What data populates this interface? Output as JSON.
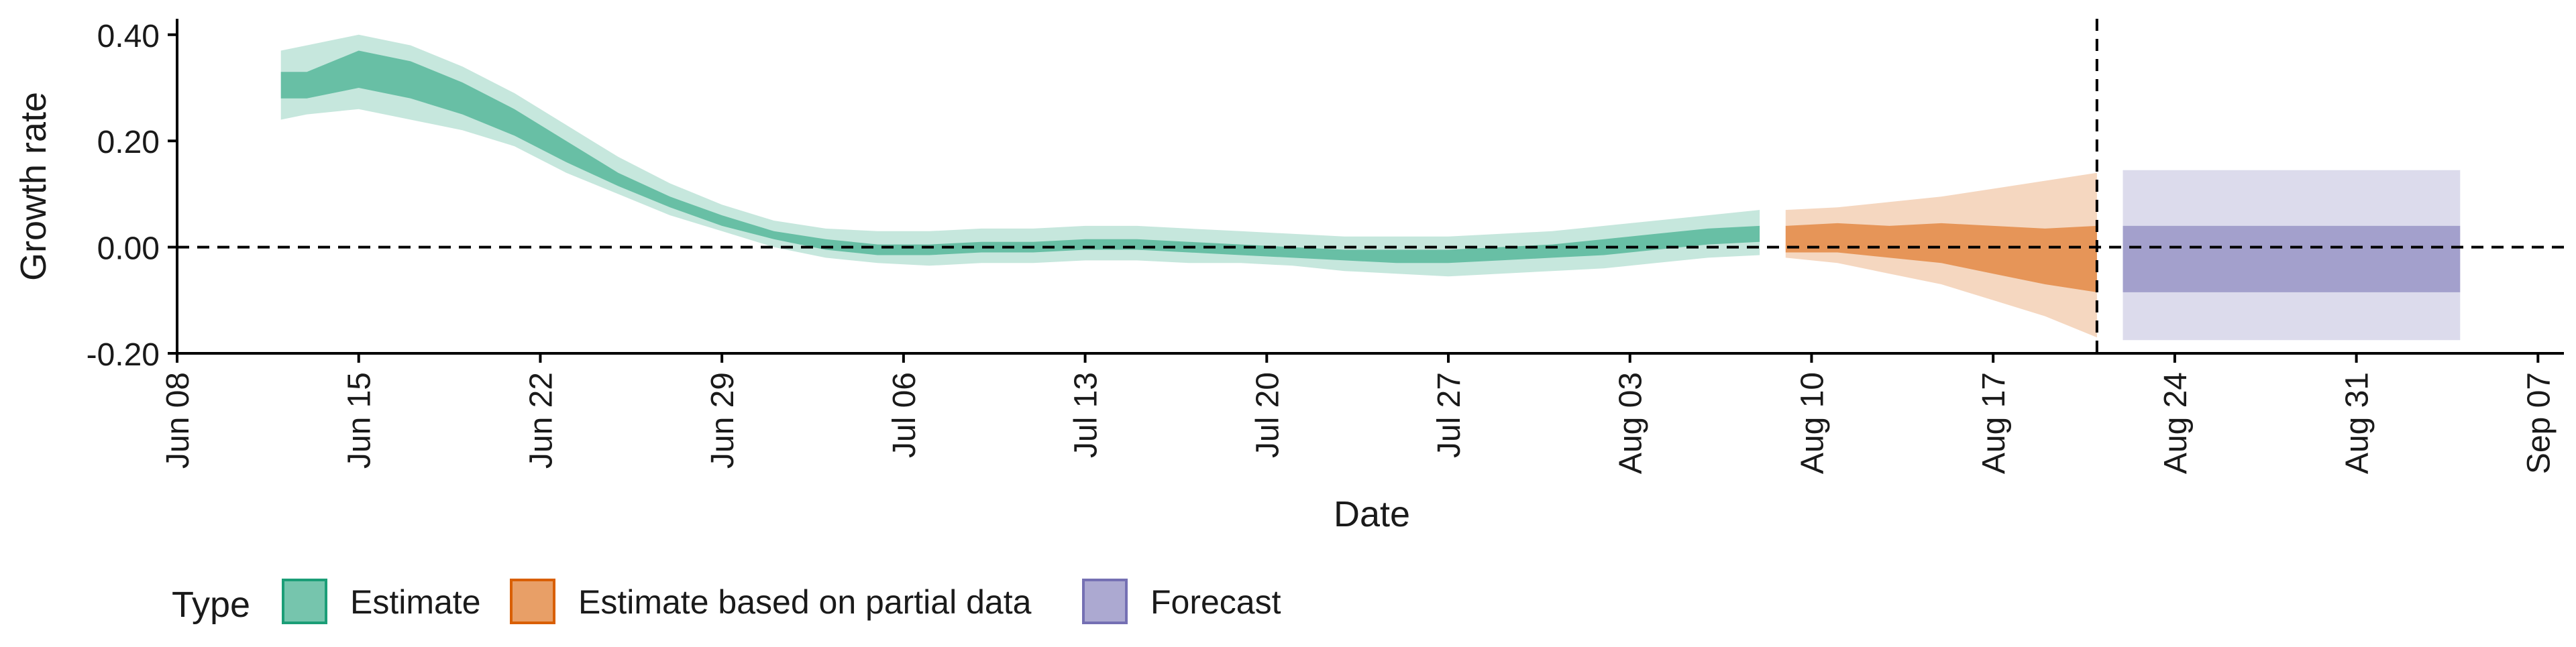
{
  "chart_data": {
    "type": "area",
    "xlabel": "Date",
    "ylabel": "Growth rate",
    "ylim": [
      -0.2,
      0.43
    ],
    "xlim": [
      "2020-06-08",
      "2020-09-08"
    ],
    "x_ticks": [
      "2020-06-08",
      "2020-06-15",
      "2020-06-22",
      "2020-06-29",
      "2020-07-06",
      "2020-07-13",
      "2020-07-20",
      "2020-07-27",
      "2020-08-03",
      "2020-08-10",
      "2020-08-17",
      "2020-08-24",
      "2020-08-31",
      "2020-09-07"
    ],
    "x_tick_labels": [
      "Jun 08",
      "Jun 15",
      "Jun 22",
      "Jun 29",
      "Jul 06",
      "Jul 13",
      "Jul 20",
      "Jul 27",
      "Aug 03",
      "Aug 10",
      "Aug 17",
      "Aug 24",
      "Aug 31",
      "Sep 07"
    ],
    "y_ticks": [
      -0.2,
      0.0,
      0.2,
      0.4
    ],
    "y_tick_labels": [
      "-0.20",
      "0.00",
      "0.20",
      "0.40"
    ],
    "grid": false,
    "reference_lines": {
      "horizontal_y": 0.0,
      "vertical_date": "2020-08-21"
    },
    "legend": {
      "title": "Type",
      "placement": "bottom-left",
      "entries": [
        {
          "label": "Estimate",
          "color": "#1b9e77"
        },
        {
          "label": "Estimate based on partial data",
          "color": "#d95f02"
        },
        {
          "label": "Forecast",
          "color": "#7570b3"
        }
      ]
    },
    "series": [
      {
        "name": "Estimate",
        "color": "#1b9e77",
        "x": [
          "2020-06-12",
          "2020-06-13",
          "2020-06-15",
          "2020-06-17",
          "2020-06-19",
          "2020-06-21",
          "2020-06-23",
          "2020-06-25",
          "2020-06-27",
          "2020-06-29",
          "2020-07-01",
          "2020-07-03",
          "2020-07-05",
          "2020-07-07",
          "2020-07-09",
          "2020-07-11",
          "2020-07-13",
          "2020-07-15",
          "2020-07-17",
          "2020-07-19",
          "2020-07-21",
          "2020-07-23",
          "2020-07-25",
          "2020-07-27",
          "2020-07-29",
          "2020-07-31",
          "2020-08-02",
          "2020-08-04",
          "2020-08-06",
          "2020-08-08"
        ],
        "outer_lower": [
          0.24,
          0.25,
          0.26,
          0.24,
          0.22,
          0.19,
          0.14,
          0.1,
          0.06,
          0.03,
          0.0,
          -0.02,
          -0.03,
          -0.035,
          -0.03,
          -0.03,
          -0.025,
          -0.025,
          -0.03,
          -0.03,
          -0.035,
          -0.045,
          -0.05,
          -0.055,
          -0.05,
          -0.045,
          -0.04,
          -0.03,
          -0.02,
          -0.015
        ],
        "inner_lower": [
          0.28,
          0.28,
          0.3,
          0.28,
          0.25,
          0.21,
          0.16,
          0.115,
          0.075,
          0.04,
          0.015,
          -0.005,
          -0.015,
          -0.015,
          -0.01,
          -0.01,
          -0.005,
          -0.005,
          -0.01,
          -0.015,
          -0.02,
          -0.025,
          -0.03,
          -0.03,
          -0.025,
          -0.02,
          -0.015,
          -0.005,
          0.005,
          0.01
        ],
        "inner_upper": [
          0.33,
          0.33,
          0.37,
          0.35,
          0.31,
          0.26,
          0.2,
          0.14,
          0.095,
          0.06,
          0.03,
          0.015,
          0.005,
          0.005,
          0.01,
          0.01,
          0.015,
          0.015,
          0.01,
          0.005,
          0.0,
          -0.005,
          -0.005,
          -0.005,
          0.0,
          0.005,
          0.015,
          0.025,
          0.035,
          0.04
        ],
        "outer_upper": [
          0.37,
          0.38,
          0.4,
          0.38,
          0.34,
          0.29,
          0.23,
          0.17,
          0.12,
          0.08,
          0.05,
          0.035,
          0.03,
          0.03,
          0.035,
          0.035,
          0.04,
          0.04,
          0.035,
          0.03,
          0.025,
          0.02,
          0.02,
          0.02,
          0.025,
          0.03,
          0.04,
          0.05,
          0.06,
          0.07
        ]
      },
      {
        "name": "Estimate based on partial data",
        "color": "#d95f02",
        "x": [
          "2020-08-09",
          "2020-08-11",
          "2020-08-13",
          "2020-08-15",
          "2020-08-17",
          "2020-08-19",
          "2020-08-21"
        ],
        "outer_lower": [
          -0.02,
          -0.03,
          -0.05,
          -0.07,
          -0.1,
          -0.13,
          -0.17
        ],
        "inner_lower": [
          -0.01,
          -0.01,
          -0.02,
          -0.03,
          -0.05,
          -0.07,
          -0.085
        ],
        "inner_upper": [
          0.04,
          0.045,
          0.04,
          0.045,
          0.04,
          0.035,
          0.04
        ],
        "outer_upper": [
          0.07,
          0.075,
          0.085,
          0.095,
          0.11,
          0.125,
          0.14
        ]
      },
      {
        "name": "Forecast",
        "color": "#7570b3",
        "x": [
          "2020-08-22",
          "2020-09-04"
        ],
        "outer_lower": [
          -0.175,
          -0.175
        ],
        "inner_lower": [
          -0.085,
          -0.085
        ],
        "inner_upper": [
          0.04,
          0.04
        ],
        "outer_upper": [
          0.145,
          0.145
        ]
      }
    ]
  }
}
